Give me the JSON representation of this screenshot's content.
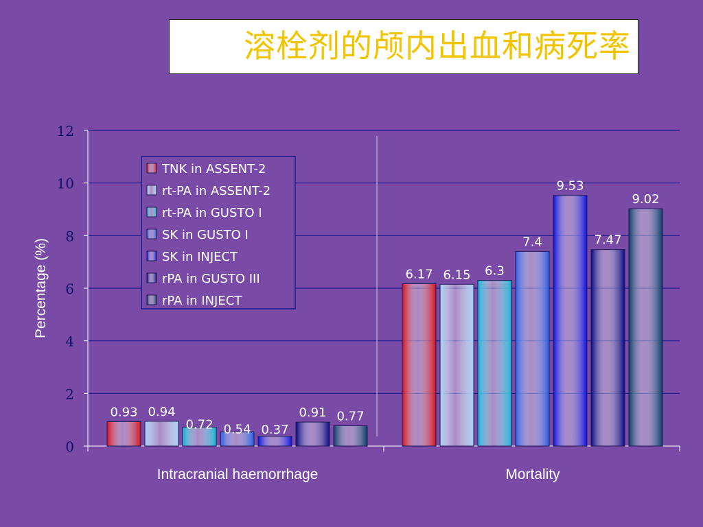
{
  "title": "溶栓剂的颅内出血和病死率",
  "colors": {
    "background": "#7a4ba6",
    "title_text": "#f2c400",
    "grid": "#1a1a8c",
    "axis": "#ffffff",
    "tick_text": "#10106a",
    "text": "#ffffff",
    "legend_bg": "#7a4ba6",
    "legend_border": "#1a1a8c"
  },
  "chart_data": {
    "type": "bar",
    "categories": [
      "Intracranial haemorrhage",
      "Mortality"
    ],
    "ylabel": "Percentage (%)",
    "xlabel": "",
    "ylim": [
      0,
      12
    ],
    "yticks": [
      "0",
      "2",
      "4",
      "6",
      "8",
      "10",
      "12"
    ],
    "grid": true,
    "legend_position": "upper-left inside",
    "series": [
      {
        "name": "TNK in ASSENT-2",
        "values": [
          0.93,
          6.17
        ],
        "labels": [
          "0.93",
          "6.17"
        ],
        "color": "#d4101c"
      },
      {
        "name": "rt-PA in ASSENT-2",
        "values": [
          0.94,
          6.15
        ],
        "labels": [
          "0.94",
          "6.15"
        ],
        "color": "#a8d0f4"
      },
      {
        "name": "rt-PA in GUSTO I",
        "values": [
          0.72,
          6.3
        ],
        "labels": [
          "0.72",
          "6.3"
        ],
        "color": "#16b8d8"
      },
      {
        "name": "SK in GUSTO I",
        "values": [
          0.54,
          7.4
        ],
        "labels": [
          "0.54",
          "7.4"
        ],
        "color": "#2a5ce0"
      },
      {
        "name": "SK in INJECT",
        "values": [
          0.37,
          9.53
        ],
        "labels": [
          "0.37",
          "9.53"
        ],
        "color": "#0c10e0"
      },
      {
        "name": "rPA in GUSTO III",
        "values": [
          0.91,
          7.47
        ],
        "labels": [
          "0.91",
          "7.47"
        ],
        "color": "#060880"
      },
      {
        "name": "rPA in INJECT",
        "values": [
          0.77,
          9.02
        ],
        "labels": [
          "0.77",
          "9.02"
        ],
        "color": "#083a66"
      }
    ]
  }
}
